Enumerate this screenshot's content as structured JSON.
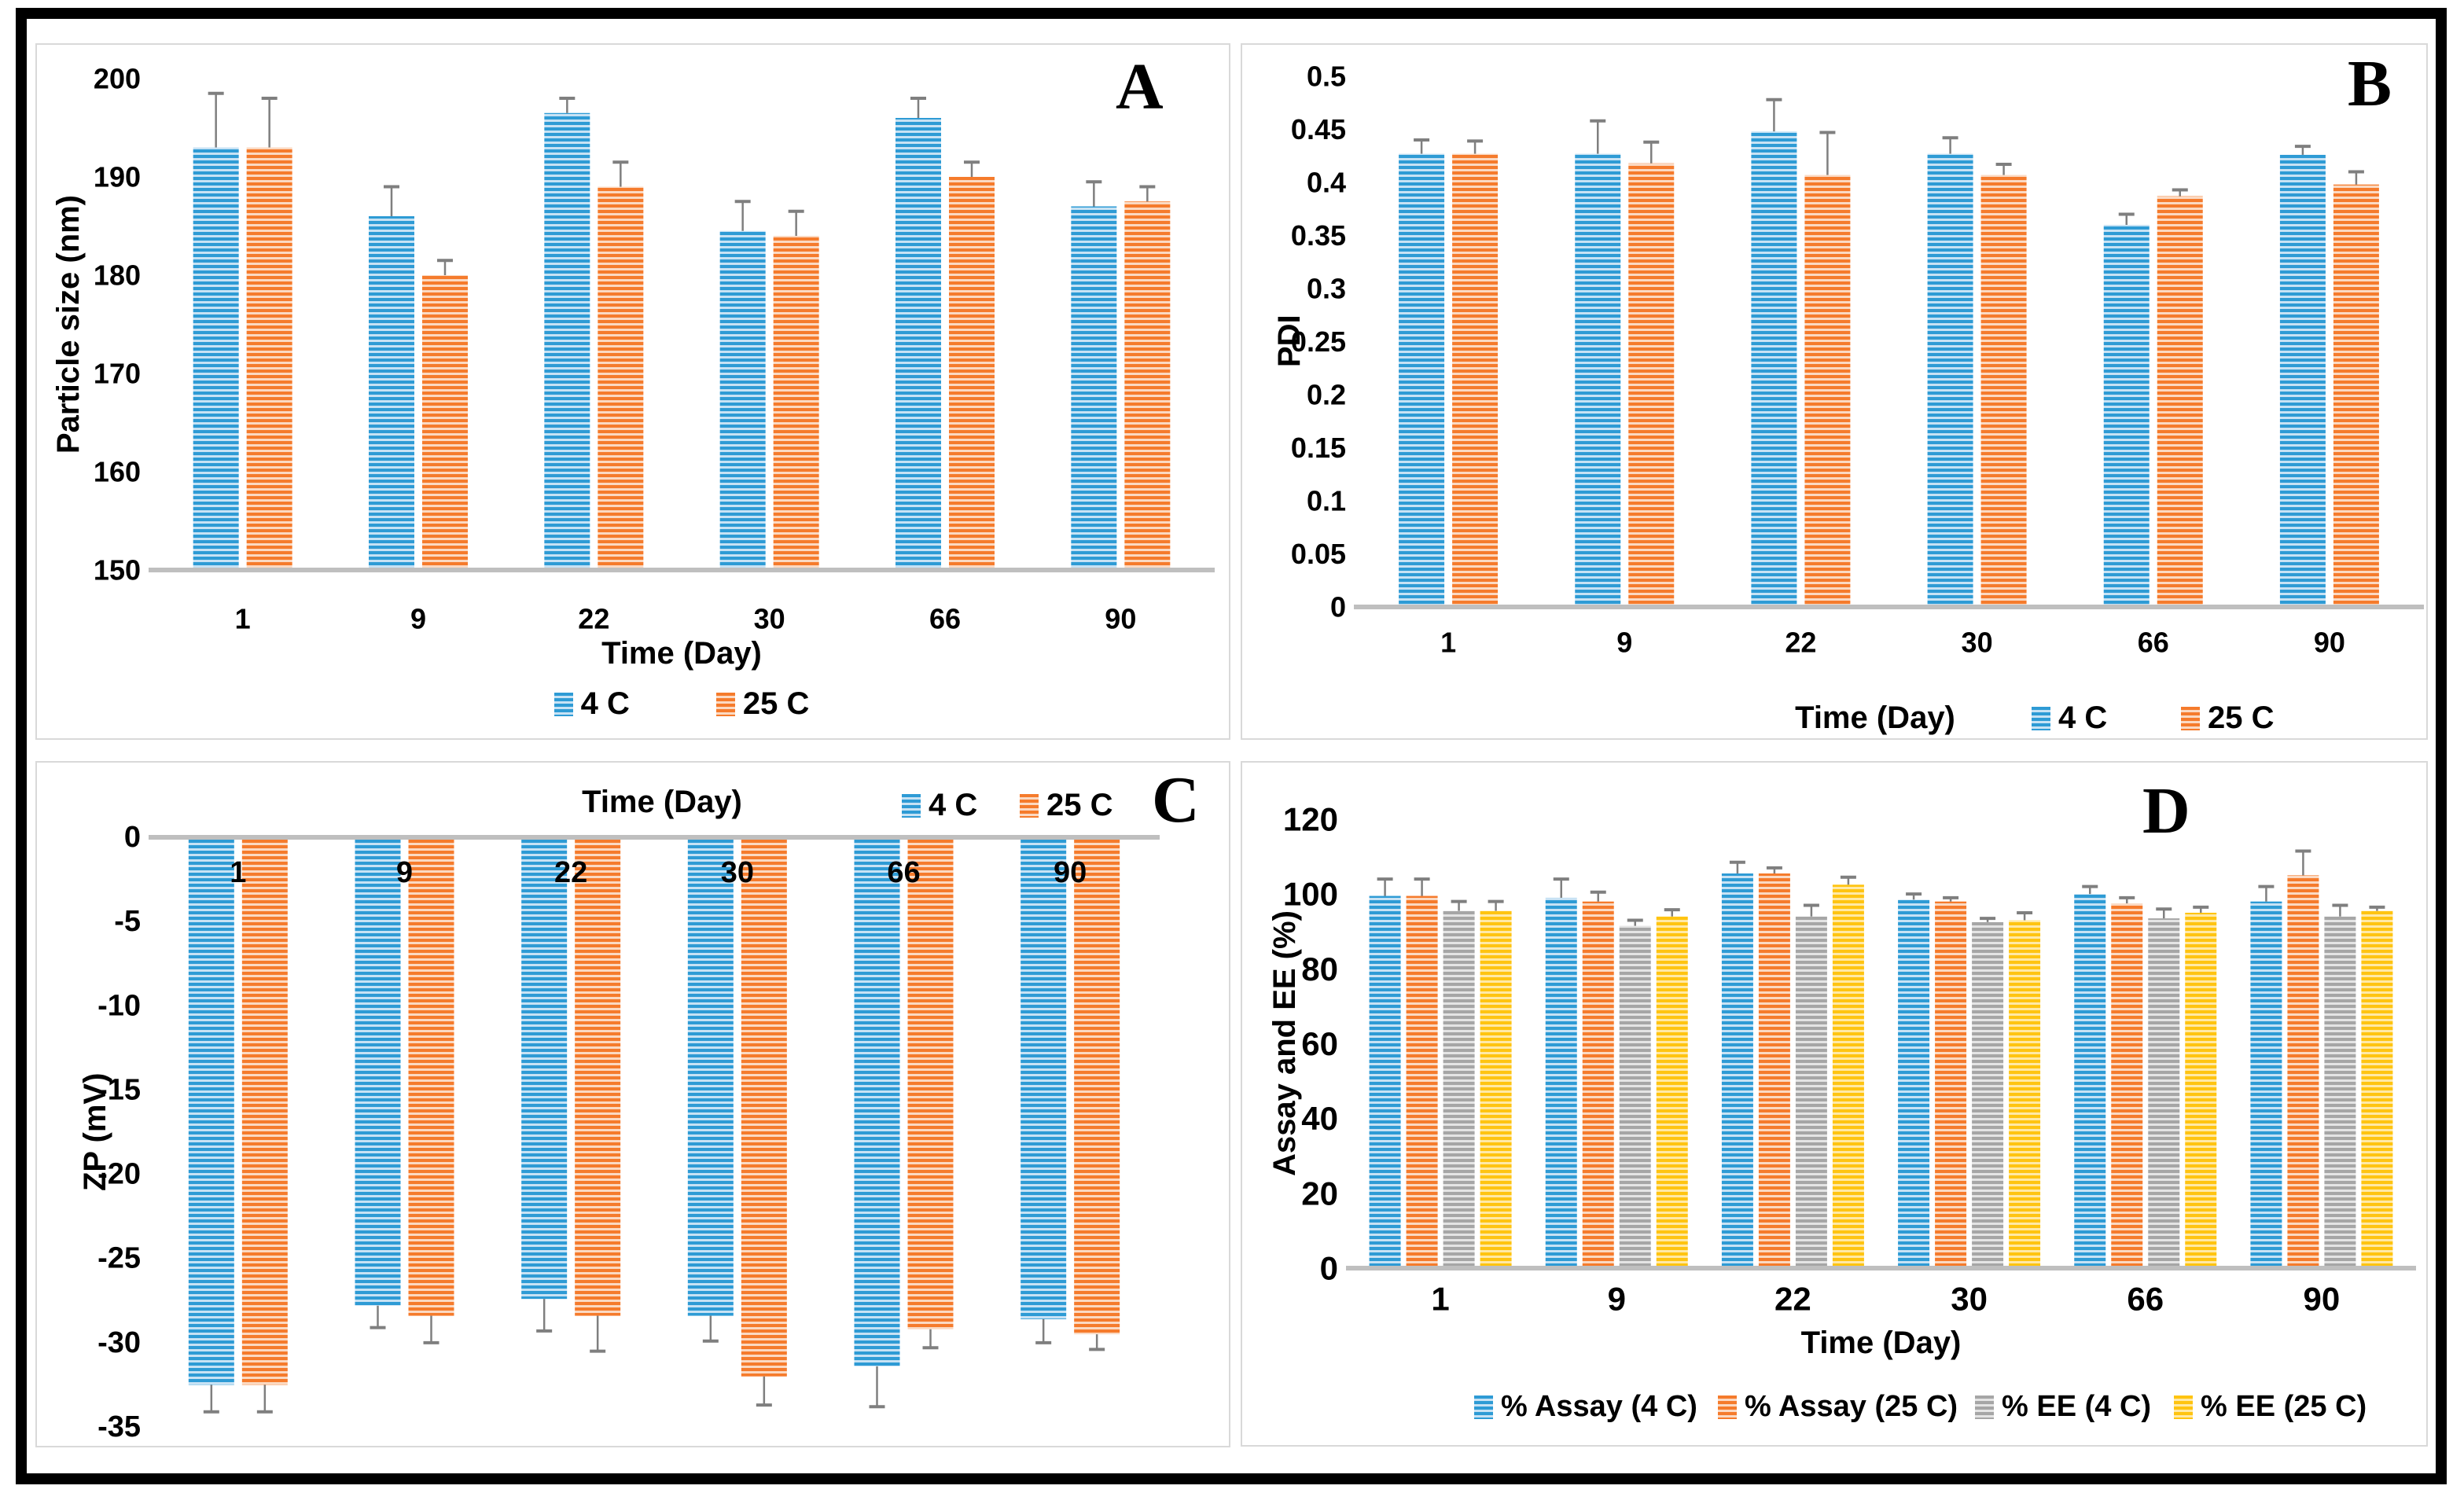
{
  "figure": {
    "frame_color": "#000000",
    "background": "#ffffff",
    "error_bar_color": "#7f7f7f",
    "axis_line_color": "#bfbfbf"
  },
  "chart_data": [
    {
      "panel": "A",
      "letter": "A",
      "type": "bar",
      "title": "",
      "xlabel": "Time (Day)",
      "ylabel": "Particle size (nm)",
      "ylim": [
        150,
        200
      ],
      "ytick_step": 10,
      "grid": false,
      "legend_position": "bottom-center",
      "bar_direction": "up",
      "categories": [
        "1",
        "9",
        "22",
        "30",
        "66",
        "90"
      ],
      "series": [
        {
          "name": "4 C",
          "color": "#2E9BD5",
          "stripe": "#C7E2F4",
          "values": [
            193,
            186,
            196.5,
            184.5,
            196,
            187
          ],
          "errors": [
            5.5,
            3,
            1.5,
            3,
            2,
            2.5
          ]
        },
        {
          "name": "25 C",
          "color": "#F57B2C",
          "stripe": "#FBD9C2",
          "values": [
            193,
            180,
            189,
            184,
            190,
            187.5
          ],
          "errors": [
            5,
            1.5,
            2.5,
            2.5,
            1.5,
            1.5
          ]
        }
      ]
    },
    {
      "panel": "B",
      "letter": "B",
      "type": "bar",
      "title": "",
      "xlabel": "Time (Day)",
      "ylabel": "PDI",
      "ylim": [
        0,
        0.5
      ],
      "ytick_step": 0.05,
      "grid": false,
      "legend_position": "bottom-inline-right",
      "bar_direction": "up",
      "categories": [
        "1",
        "9",
        "22",
        "30",
        "66",
        "90"
      ],
      "series": [
        {
          "name": "4 C",
          "color": "#2E9BD5",
          "stripe": "#C7E2F4",
          "values": [
            0.427,
            0.427,
            0.448,
            0.427,
            0.36,
            0.426
          ],
          "errors": [
            0.013,
            0.031,
            0.03,
            0.015,
            0.01,
            0.008
          ]
        },
        {
          "name": "25 C",
          "color": "#F57B2C",
          "stripe": "#FBD9C2",
          "values": [
            0.427,
            0.418,
            0.407,
            0.407,
            0.387,
            0.398
          ],
          "errors": [
            0.012,
            0.02,
            0.04,
            0.01,
            0.006,
            0.012
          ]
        }
      ]
    },
    {
      "panel": "C",
      "letter": "C",
      "type": "bar",
      "title": "",
      "xlabel": "Time (Day)",
      "ylabel": "ZP (mV)",
      "ylim": [
        -35,
        0
      ],
      "ytick_step": 5,
      "grid": false,
      "legend_position": "top-right",
      "bar_direction": "down",
      "categories": [
        "1",
        "9",
        "22",
        "30",
        "66",
        "90"
      ],
      "series": [
        {
          "name": "4 C",
          "color": "#2E9BD5",
          "stripe": "#C7E2F4",
          "values": [
            -32.5,
            -27.8,
            -27.4,
            -28.4,
            -31.4,
            -28.6
          ],
          "errors": [
            1.6,
            1.3,
            1.9,
            1.5,
            2.4,
            1.4
          ]
        },
        {
          "name": "25 C",
          "color": "#F57B2C",
          "stripe": "#FBD9C2",
          "values": [
            -32.5,
            -28.4,
            -28.4,
            -32,
            -29.2,
            -29.5
          ],
          "errors": [
            1.6,
            1.6,
            2.1,
            1.7,
            1.1,
            0.9
          ]
        }
      ]
    },
    {
      "panel": "D",
      "letter": "D",
      "type": "bar",
      "title": "",
      "xlabel": "Time (Day)",
      "ylabel": "Assay and EE (%)",
      "ylim": [
        0,
        120
      ],
      "ytick_step": 20,
      "grid": false,
      "legend_position": "bottom-center",
      "bar_direction": "up",
      "categories": [
        "1",
        "9",
        "22",
        "30",
        "66",
        "90"
      ],
      "series": [
        {
          "name": "% Assay (4 C)",
          "color": "#2E9BD5",
          "stripe": "#C7E2F4",
          "values": [
            99.5,
            99,
            105.5,
            98.5,
            100,
            98
          ],
          "errors": [
            4.5,
            5,
            3,
            1.5,
            2,
            4
          ]
        },
        {
          "name": "% Assay (25 C)",
          "color": "#F57B2C",
          "stripe": "#FBD9C2",
          "values": [
            99.5,
            98,
            105.5,
            98,
            97.5,
            105
          ],
          "errors": [
            4.5,
            2.5,
            1.5,
            1,
            1.5,
            6.5
          ]
        },
        {
          "name": "% EE (4 C)",
          "color": "#A6A6A6",
          "stripe": "#E4E4E4",
          "values": [
            95.5,
            91.5,
            94,
            92.5,
            93.5,
            94
          ],
          "errors": [
            2.5,
            1.5,
            3,
            1,
            2.5,
            3
          ]
        },
        {
          "name": "% EE (25 C)",
          "color": "#FFC411",
          "stripe": "#FFE9A6",
          "values": [
            95.5,
            94,
            102.5,
            93,
            95,
            95.5
          ],
          "errors": [
            2.5,
            1.8,
            2,
            2,
            1.5,
            1
          ]
        }
      ]
    }
  ]
}
